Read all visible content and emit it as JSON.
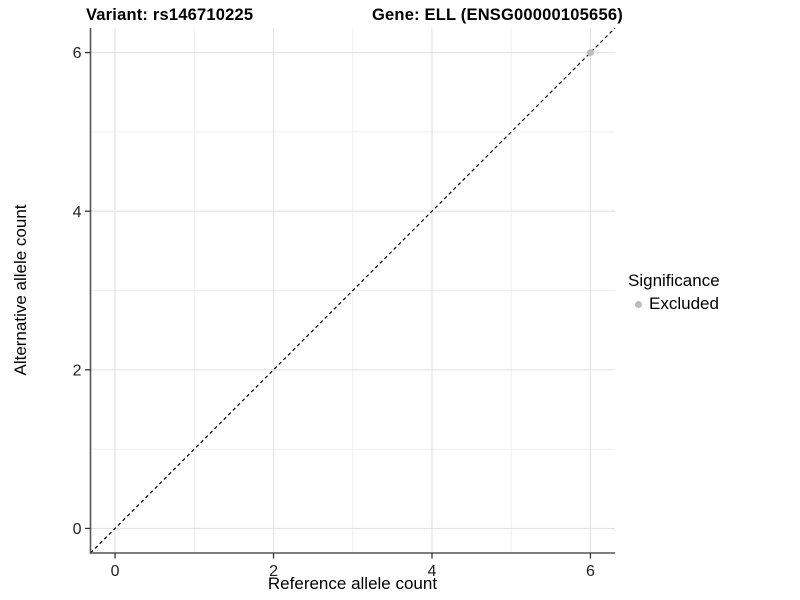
{
  "chart_data": {
    "type": "scatter",
    "title_left": "Variant: rs146710225",
    "title_right": "Gene: ELL (ENSG00000105656)",
    "xlabel": "Reference allele count",
    "ylabel": "Alternative allele count",
    "xlim": [
      -0.31,
      6.31
    ],
    "ylim": [
      -0.31,
      6.31
    ],
    "x_ticks": [
      0,
      2,
      4,
      6
    ],
    "y_ticks": [
      0,
      2,
      4,
      6
    ],
    "x_minor_ticks": [
      1,
      3,
      5
    ],
    "y_minor_ticks": [
      1,
      3,
      5
    ],
    "grid": true,
    "series": [
      {
        "name": "Excluded",
        "color": "#bdbdbd",
        "points": [
          [
            6,
            6
          ]
        ]
      }
    ],
    "reference_line": {
      "equation": "y = x",
      "style": "dashed",
      "color": "#000000"
    },
    "legend": {
      "title": "Significance",
      "position": "right",
      "items": [
        {
          "label": "Excluded",
          "color": "#bdbdbd"
        }
      ]
    },
    "colors": {
      "background": "#ffffff",
      "grid_major": "#e3e3e3",
      "grid_minor": "#efefef",
      "axis_line": "#555555",
      "tick_mark": "#333333",
      "tick_label": "#222222"
    }
  }
}
